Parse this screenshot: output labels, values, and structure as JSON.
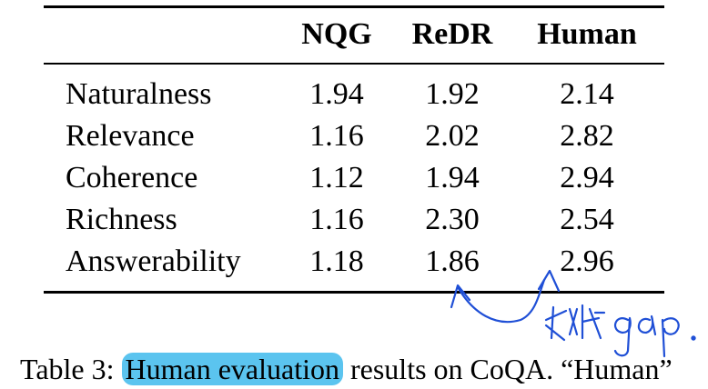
{
  "table": {
    "columns": [
      "NQG",
      "ReDR",
      "Human"
    ],
    "rows": [
      {
        "label": "Naturalness",
        "values": [
          "1.94",
          "1.92",
          "2.14"
        ]
      },
      {
        "label": "Relevance",
        "values": [
          "1.16",
          "2.02",
          "2.82"
        ]
      },
      {
        "label": "Coherence",
        "values": [
          "1.12",
          "1.94",
          "2.94"
        ]
      },
      {
        "label": "Richness",
        "values": [
          "1.16",
          "2.30",
          "2.54"
        ]
      },
      {
        "label": "Answerability",
        "values": [
          "1.18",
          "1.86",
          "2.96"
        ]
      }
    ]
  },
  "caption": {
    "prefix": "Table 3: ",
    "highlighted": "Human evaluation",
    "suffix": " results on CoQA. “Human”"
  },
  "annotation": {
    "ink_color": "#1f4fd6",
    "highlight_color": "#5bc4ef"
  }
}
